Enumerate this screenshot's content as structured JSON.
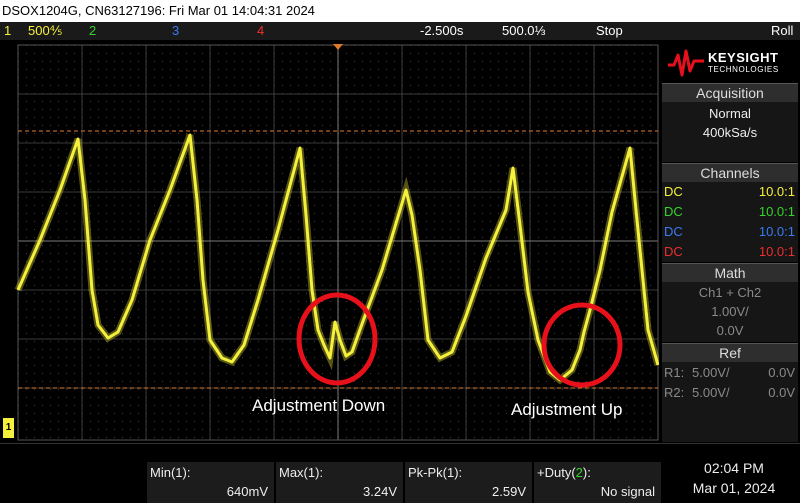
{
  "title_bar": {
    "text": "DSOX1204G, CN63127196: Fri Mar 01 14:04:31 2024"
  },
  "status_bar": {
    "ch1_index": "1",
    "ch1_scale": "500⅘",
    "ch2_index": "2",
    "ch3_index": "3",
    "ch4_index": "4",
    "time_delay": "-2.500s",
    "time_div": "500.0⅓",
    "run_state": "Stop",
    "trigger_mode": "Roll"
  },
  "annotations": {
    "down_label": "Adjustment Down",
    "up_label": "Adjustment Up"
  },
  "ground_marker": "1",
  "panel": {
    "logo_line1": "KEYSIGHT",
    "logo_line2": "TECHNOLOGIES",
    "acquisition": {
      "header": "Acquisition",
      "mode": "Normal",
      "rate": "400kSa/s"
    },
    "channels": {
      "header": "Channels",
      "rows": [
        {
          "coupling": "DC",
          "probe": "10.0:1"
        },
        {
          "coupling": "DC",
          "probe": "10.0:1"
        },
        {
          "coupling": "DC",
          "probe": "10.0:1"
        },
        {
          "coupling": "DC",
          "probe": "10.0:1"
        }
      ]
    },
    "math": {
      "header": "Math",
      "function": "Ch1 + Ch2",
      "scale": "1.00V/",
      "offset": "0.0V"
    },
    "ref": {
      "header": "Ref",
      "r1_label": "R1:",
      "r1_scale": "5.00V/",
      "r1_offset": "0.0V",
      "r2_label": "R2:",
      "r2_scale": "5.00V/",
      "r2_offset": "0.0V"
    }
  },
  "measurements": [
    {
      "label": "Min(1):",
      "value": "640mV"
    },
    {
      "label": "Max(1):",
      "value": "3.24V"
    },
    {
      "label": "Pk-Pk(1):",
      "value": "2.59V"
    },
    {
      "label": "+Duty(2):",
      "value": "No signal"
    }
  ],
  "clock": {
    "time": "02:04 PM",
    "date": "Mar 01, 2024"
  },
  "colors": {
    "ch1": "#f5f03c",
    "ch2": "#34d52a",
    "ch3": "#3a7bf2",
    "ch4": "#ee2d2d",
    "cursor": "#e07a2a",
    "annotation_circle": "#e8111b"
  }
}
